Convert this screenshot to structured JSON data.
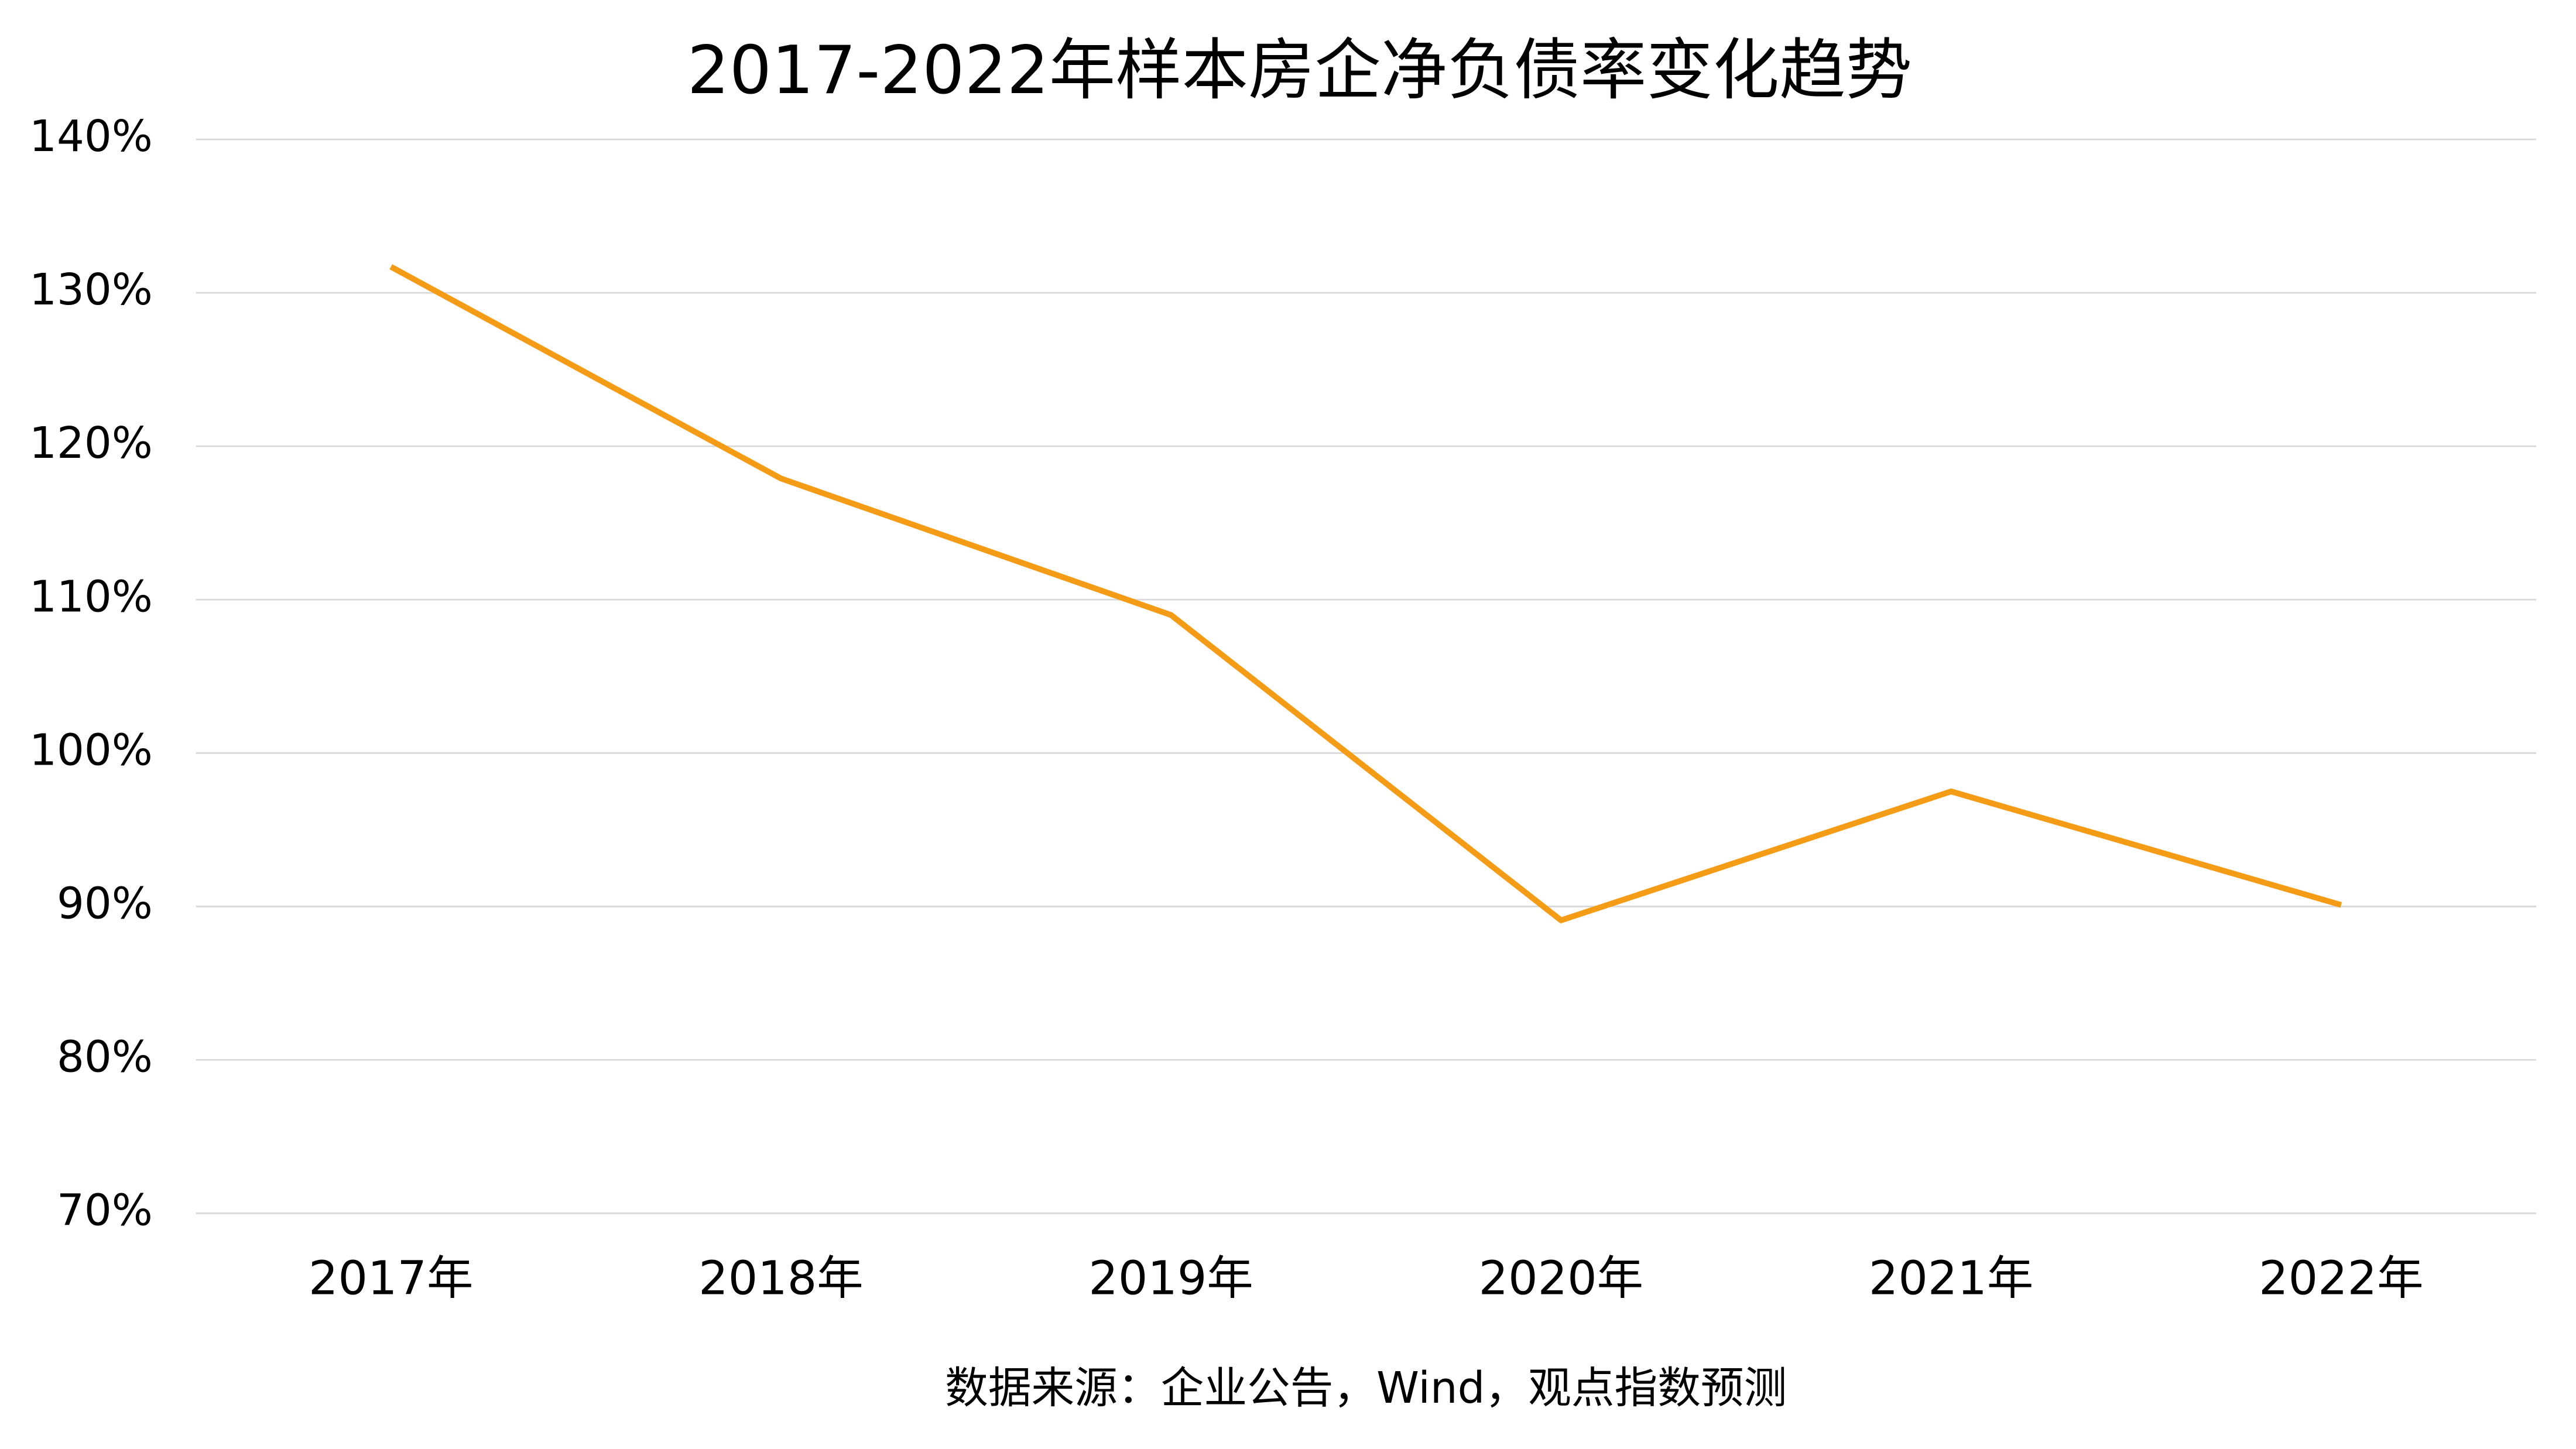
{
  "chart_data": {
    "type": "line",
    "title": "2017-2022年样本房企净负债率变化趋势",
    "categories": [
      "2017年",
      "2018年",
      "2019年",
      "2020年",
      "2021年",
      "2022年"
    ],
    "series": [
      {
        "name": "净负债率",
        "color": "#f59c17",
        "values": [
          131.7,
          117.9,
          109.0,
          89.1,
          97.5,
          90.1
        ]
      }
    ],
    "ylim": [
      70,
      140
    ],
    "yticks": [
      {
        "value": 70,
        "label": "70%"
      },
      {
        "value": 80,
        "label": "80%"
      },
      {
        "value": 90,
        "label": "90%"
      },
      {
        "value": 100,
        "label": "100%"
      },
      {
        "value": 110,
        "label": "110%"
      },
      {
        "value": 120,
        "label": "120%"
      },
      {
        "value": 130,
        "label": "130%"
      },
      {
        "value": 140,
        "label": "140%"
      }
    ],
    "grid": true,
    "source": "数据来源：企业公告，Wind，观点指数预测"
  }
}
